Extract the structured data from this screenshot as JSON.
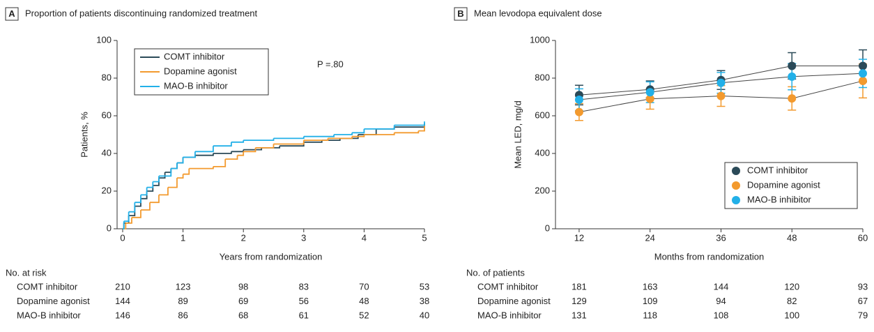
{
  "chart_data": [
    {
      "type": "step",
      "panel_label": "A",
      "title": "Proportion of patients discontinuing randomized treatment",
      "xlabel": "Years from randomization",
      "ylabel": "Patients, %",
      "xlim": [
        0,
        5
      ],
      "xticks": [
        0,
        1,
        2,
        3,
        4,
        5
      ],
      "ylim": [
        0,
        100
      ],
      "yticks": [
        0,
        20,
        40,
        60,
        80,
        100
      ],
      "annotation": "P =.80",
      "legend": "upper left",
      "series": [
        {
          "name": "COMT inhibitor",
          "color": "#2b4a58",
          "x": [
            0,
            0.02,
            0.1,
            0.2,
            0.3,
            0.4,
            0.5,
            0.6,
            0.7,
            0.8,
            0.9,
            1.0,
            1.2,
            1.5,
            1.8,
            2.0,
            2.3,
            2.6,
            3.0,
            3.3,
            3.6,
            3.9,
            4.2,
            4.5,
            5.0
          ],
          "values": [
            0,
            3,
            7,
            12,
            16,
            20,
            23,
            27,
            30,
            32,
            35,
            38,
            39,
            40,
            41,
            42,
            43,
            44,
            46,
            47,
            48,
            50,
            53,
            54,
            56
          ]
        },
        {
          "name": "Dopamine agonist",
          "color": "#f39a2e",
          "x": [
            0,
            0.05,
            0.15,
            0.3,
            0.45,
            0.6,
            0.75,
            0.9,
            1.0,
            1.1,
            1.5,
            1.7,
            1.9,
            2.0,
            2.2,
            2.5,
            3.0,
            3.4,
            3.8,
            4.0,
            4.5,
            4.9,
            5.0
          ],
          "values": [
            0,
            3,
            6,
            10,
            14,
            18,
            22,
            27,
            29,
            32,
            33,
            37,
            39,
            41,
            43,
            45,
            47,
            48,
            49,
            50,
            51,
            52,
            55
          ]
        },
        {
          "name": "MAO-B inhibitor",
          "color": "#22b0e8",
          "x": [
            0,
            0.02,
            0.1,
            0.2,
            0.3,
            0.4,
            0.5,
            0.6,
            0.8,
            0.9,
            1.0,
            1.2,
            1.5,
            1.8,
            2.0,
            2.5,
            3.0,
            3.5,
            3.8,
            4.0,
            4.5,
            5.0
          ],
          "values": [
            0,
            4,
            9,
            14,
            18,
            22,
            25,
            28,
            32,
            35,
            38,
            41,
            44,
            46,
            47,
            48,
            49,
            50,
            51,
            53,
            55,
            57
          ]
        }
      ],
      "risk_table": {
        "title": "No. at risk",
        "rows": [
          {
            "name": "COMT inhibitor",
            "values": [
              210,
              123,
              98,
              83,
              70,
              53
            ]
          },
          {
            "name": "Dopamine agonist",
            "values": [
              144,
              89,
              69,
              56,
              48,
              38
            ]
          },
          {
            "name": "MAO-B inhibitor",
            "values": [
              146,
              86,
              68,
              61,
              52,
              40
            ]
          }
        ]
      }
    },
    {
      "type": "errorbar",
      "panel_label": "B",
      "title": "Mean levodopa equivalent dose",
      "xlabel": "Months from randomization",
      "ylabel": "Mean LED, mg/d",
      "xlim": [
        8,
        60
      ],
      "xticks": [
        12,
        24,
        36,
        48,
        60
      ],
      "ylim": [
        0,
        1000
      ],
      "yticks": [
        0,
        200,
        400,
        600,
        800,
        1000
      ],
      "legend": "lower right",
      "x": [
        12,
        24,
        36,
        48,
        60
      ],
      "series": [
        {
          "name": "COMT inhibitor",
          "color": "#2b4a58",
          "values": [
            710,
            740,
            790,
            865,
            865
          ],
          "errors": [
            52,
            45,
            50,
            70,
            85
          ]
        },
        {
          "name": "Dopamine agonist",
          "color": "#f39a2e",
          "values": [
            620,
            690,
            705,
            692,
            785
          ],
          "errors": [
            45,
            55,
            55,
            62,
            90
          ]
        },
        {
          "name": "MAO-B inhibitor",
          "color": "#22b0e8",
          "values": [
            685,
            725,
            775,
            808,
            825
          ],
          "errors": [
            58,
            55,
            55,
            70,
            75
          ]
        }
      ],
      "risk_table": {
        "title": "No. of patients",
        "rows": [
          {
            "name": "COMT inhibitor",
            "values": [
              181,
              163,
              144,
              120,
              93
            ]
          },
          {
            "name": "Dopamine agonist",
            "values": [
              129,
              109,
              94,
              82,
              67
            ]
          },
          {
            "name": "MAO-B inhibitor",
            "values": [
              131,
              118,
              108,
              100,
              79
            ]
          }
        ]
      }
    }
  ]
}
